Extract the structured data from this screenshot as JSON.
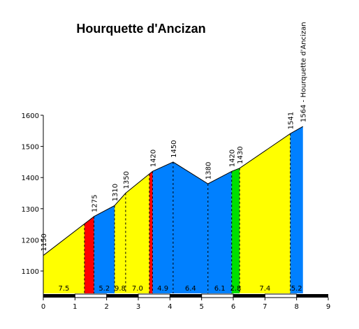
{
  "chart_data": {
    "type": "area",
    "title": "Hourquette d'Ancizan",
    "xlabel": "",
    "ylabel": "",
    "xlim": [
      0,
      9
    ],
    "ylim": [
      1050,
      1600
    ],
    "x_ticks": [
      "0",
      "1",
      "2",
      "3",
      "4",
      "5",
      "6",
      "7",
      "8",
      "9"
    ],
    "y_ticks": [
      "1100",
      "1200",
      "1300",
      "1400",
      "1500",
      "1600"
    ],
    "profile": [
      {
        "x": 0.0,
        "y": 1150,
        "label": "1150"
      },
      {
        "x": 1.6,
        "y": 1275,
        "label": "1275"
      },
      {
        "x": 2.25,
        "y": 1310,
        "label": "1310"
      },
      {
        "x": 2.6,
        "y": 1350,
        "label": "1350"
      },
      {
        "x": 3.45,
        "y": 1420,
        "label": "1420"
      },
      {
        "x": 4.1,
        "y": 1450,
        "label": "1450"
      },
      {
        "x": 5.2,
        "y": 1380,
        "label": "1380"
      },
      {
        "x": 5.95,
        "y": 1420,
        "label": "1420"
      },
      {
        "x": 6.2,
        "y": 1430,
        "label": "1430"
      },
      {
        "x": 7.8,
        "y": 1541,
        "label": "1541"
      },
      {
        "x": 8.2,
        "y": 1564,
        "label": "1564 - Hourquette d'Ancizan"
      }
    ],
    "segments": [
      {
        "x0": 0.0,
        "x1": 1.3,
        "gradient": "7.5",
        "color": "#ffff00"
      },
      {
        "x0": 1.3,
        "x1": 1.6,
        "gradient": "",
        "color": "#ff0000"
      },
      {
        "x0": 1.6,
        "x1": 2.25,
        "gradient": "5.2",
        "color": "#0080ff"
      },
      {
        "x0": 2.25,
        "x1": 2.6,
        "gradient": "9.8",
        "color": "#ffff00"
      },
      {
        "x0": 2.6,
        "x1": 3.35,
        "gradient": "7.0",
        "color": "#ffff00"
      },
      {
        "x0": 3.35,
        "x1": 3.45,
        "gradient": "",
        "color": "#ff0000"
      },
      {
        "x0": 3.45,
        "x1": 4.1,
        "gradient": "4.9",
        "color": "#0080ff"
      },
      {
        "x0": 4.1,
        "x1": 5.2,
        "gradient": "6.4",
        "color": "#0080ff"
      },
      {
        "x0": 5.2,
        "x1": 5.95,
        "gradient": "6.1",
        "color": "#0080ff"
      },
      {
        "x0": 5.95,
        "x1": 6.2,
        "gradient": "2.8",
        "color": "#00e000"
      },
      {
        "x0": 6.2,
        "x1": 7.8,
        "gradient": "7.4",
        "color": "#ffff00"
      },
      {
        "x0": 7.8,
        "x1": 8.2,
        "gradient": "5.2",
        "color": "#0080ff"
      }
    ],
    "dashed_dividers_x": [
      1.3,
      1.6,
      2.25,
      2.6,
      3.35,
      3.45,
      4.1,
      5.2,
      5.95,
      6.2,
      7.8
    ],
    "grid": false,
    "legend": "none"
  }
}
